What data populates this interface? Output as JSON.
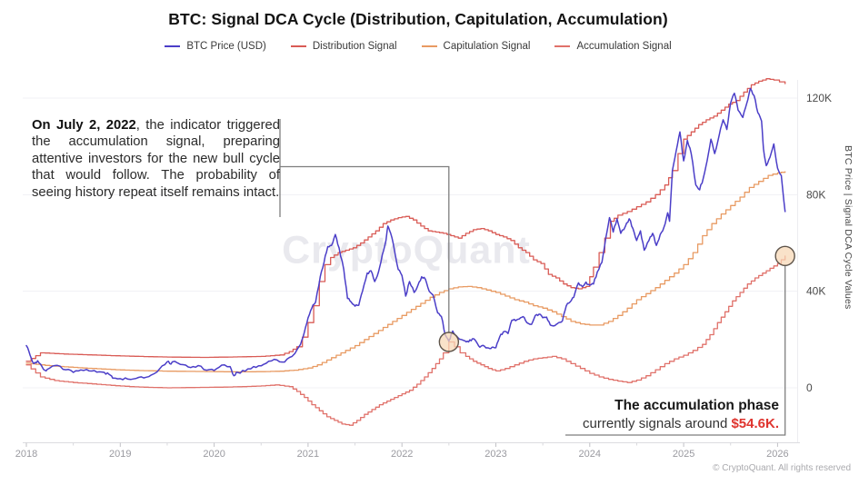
{
  "title": "BTC: Signal DCA Cycle (Distribution, Capitulation, Accumulation)",
  "watermark": "CryptoQuant",
  "footer": "© CryptoQuant. All rights reserved",
  "colors": {
    "btc": "#4b3ec8",
    "distribution": "#d95b55",
    "capitulation": "#e89a62",
    "accumulation": "#e0716a",
    "connector": "#7e7e7e",
    "marker_fill": "#f6d7b4",
    "marker_stroke": "#5d5349",
    "value_accent": "#df342e"
  },
  "legend": [
    {
      "id": "btc-price",
      "label": "BTC Price (USD)",
      "color": "#4b3ec8"
    },
    {
      "id": "distribution-signal",
      "label": "Distribution Signal",
      "color": "#d95b55"
    },
    {
      "id": "capitulation-signal",
      "label": "Capitulation Signal",
      "color": "#e89a62"
    },
    {
      "id": "accumulation-signal",
      "label": "Accumulation Signal",
      "color": "#e0716a"
    }
  ],
  "axes": {
    "y_title": "BTC Price | Signal DCA Cycle Values",
    "y_ticks": [
      {
        "label": "120K",
        "value": 120
      },
      {
        "label": "80K",
        "value": 80
      },
      {
        "label": "40K",
        "value": 40
      },
      {
        "label": "0",
        "value": 0
      }
    ],
    "x_ticks": [
      {
        "label": "2018",
        "year": 2018
      },
      {
        "label": "2019",
        "year": 2019
      },
      {
        "label": "2020",
        "year": 2020
      },
      {
        "label": "2021",
        "year": 2021
      },
      {
        "label": "2022",
        "year": 2022
      },
      {
        "label": "2023",
        "year": 2023
      },
      {
        "label": "2024",
        "year": 2024
      },
      {
        "label": "2025",
        "year": 2025
      },
      {
        "label": "2026",
        "year": 2026
      }
    ]
  },
  "annotations": {
    "accumulation_2022": {
      "bold": "On July 2, 2022",
      "rest": ", the indicator triggered the accumulation signal, preparing attentive investors for the new bull cycle that would follow. The probability of seeing history repeat itself remains intact."
    },
    "current_signal": {
      "line1": "The accumulation phase",
      "line2_prefix": "currently signals around ",
      "value": "$54.6K."
    }
  },
  "chart_data": {
    "type": "line",
    "x_unit": "year",
    "y_unit": "USD thousands",
    "x_range": [
      2018,
      2026.1
    ],
    "y_range": [
      -16,
      130
    ],
    "grid": "horizontal",
    "legend_position": "top",
    "series": [
      {
        "id": "btc-price",
        "name": "BTC Price (USD)",
        "color": "#4b3ec8",
        "style": "jagged",
        "x": [
          2018.0,
          2018.04,
          2018.08,
          2018.12,
          2018.17,
          2018.21,
          2018.25,
          2018.33,
          2018.42,
          2018.5,
          2018.58,
          2018.67,
          2018.75,
          2018.83,
          2018.88,
          2018.92,
          2019.0,
          2019.08,
          2019.17,
          2019.25,
          2019.33,
          2019.42,
          2019.5,
          2019.54,
          2019.58,
          2019.67,
          2019.75,
          2019.83,
          2019.92,
          2020.0,
          2020.08,
          2020.17,
          2020.21,
          2020.25,
          2020.33,
          2020.42,
          2020.5,
          2020.58,
          2020.67,
          2020.75,
          2020.83,
          2020.92,
          2020.96,
          2021.0,
          2021.04,
          2021.08,
          2021.13,
          2021.17,
          2021.21,
          2021.25,
          2021.29,
          2021.33,
          2021.38,
          2021.42,
          2021.46,
          2021.5,
          2021.54,
          2021.58,
          2021.63,
          2021.67,
          2021.71,
          2021.75,
          2021.79,
          2021.83,
          2021.85,
          2021.88,
          2021.92,
          2021.96,
          2022.0,
          2022.04,
          2022.08,
          2022.13,
          2022.17,
          2022.21,
          2022.25,
          2022.29,
          2022.33,
          2022.38,
          2022.42,
          2022.46,
          2022.5,
          2022.52,
          2022.54,
          2022.58,
          2022.63,
          2022.67,
          2022.71,
          2022.75,
          2022.79,
          2022.83,
          2022.88,
          2022.92,
          2022.96,
          2023.0,
          2023.04,
          2023.08,
          2023.13,
          2023.17,
          2023.21,
          2023.25,
          2023.29,
          2023.33,
          2023.38,
          2023.42,
          2023.46,
          2023.5,
          2023.54,
          2023.58,
          2023.63,
          2023.67,
          2023.71,
          2023.75,
          2023.79,
          2023.83,
          2023.88,
          2023.92,
          2023.96,
          2024.0,
          2024.04,
          2024.08,
          2024.13,
          2024.17,
          2024.21,
          2024.25,
          2024.29,
          2024.33,
          2024.38,
          2024.42,
          2024.46,
          2024.5,
          2024.54,
          2024.58,
          2024.63,
          2024.67,
          2024.71,
          2024.75,
          2024.79,
          2024.83,
          2024.85,
          2024.88,
          2024.92,
          2024.96,
          2025.0,
          2025.04,
          2025.08,
          2025.13,
          2025.17,
          2025.21,
          2025.25,
          2025.29,
          2025.33,
          2025.38,
          2025.42,
          2025.46,
          2025.5,
          2025.54,
          2025.58,
          2025.63,
          2025.67,
          2025.71,
          2025.75,
          2025.79,
          2025.83,
          2025.85,
          2025.88,
          2025.92,
          2025.96,
          2026.0,
          2026.04,
          2026.08
        ],
        "y": [
          17.5,
          13.5,
          10.0,
          11.2,
          8.5,
          7.0,
          8.2,
          9.3,
          7.5,
          6.4,
          7.4,
          7.0,
          6.5,
          6.4,
          5.6,
          4.0,
          3.8,
          3.6,
          3.9,
          4.1,
          5.3,
          7.9,
          10.8,
          9.8,
          11.0,
          9.6,
          8.4,
          9.2,
          7.3,
          7.2,
          9.4,
          8.8,
          5.0,
          6.4,
          6.9,
          8.8,
          9.1,
          11.0,
          11.5,
          10.7,
          13.0,
          18.0,
          23.0,
          29.0,
          33.0,
          35.5,
          46.0,
          52.0,
          58.5,
          59.0,
          63.5,
          58.0,
          49.0,
          37.0,
          35.5,
          33.8,
          34.2,
          40.0,
          47.5,
          48.5,
          44.0,
          48.0,
          55.0,
          61.0,
          67.0,
          64.0,
          57.0,
          49.0,
          46.5,
          38.0,
          44.0,
          39.5,
          42.5,
          46.0,
          45.0,
          40.0,
          38.5,
          31.0,
          29.5,
          22.0,
          19.3,
          21.5,
          23.5,
          21.5,
          20.0,
          19.5,
          19.0,
          20.3,
          19.2,
          16.8,
          17.2,
          16.5,
          16.8,
          16.6,
          21.0,
          23.2,
          22.5,
          28.0,
          27.8,
          28.5,
          29.5,
          27.0,
          26.3,
          30.0,
          30.5,
          29.0,
          29.3,
          26.0,
          25.8,
          27.0,
          27.8,
          34.0,
          35.5,
          37.5,
          43.5,
          42.0,
          43.8,
          42.5,
          43.0,
          48.0,
          52.0,
          62.0,
          70.5,
          64.5,
          70.0,
          64.0,
          67.0,
          70.0,
          66.0,
          61.0,
          65.0,
          57.0,
          61.0,
          64.0,
          59.0,
          63.5,
          66.5,
          72.5,
          69.0,
          90.0,
          98.0,
          106.0,
          94.0,
          102.5,
          97.0,
          84.0,
          82.0,
          87.0,
          94.0,
          103.0,
          97.0,
          105.0,
          111.0,
          107.0,
          118.0,
          122.0,
          115.0,
          112.0,
          117.5,
          124.0,
          121.0,
          114.0,
          110.5,
          99.0,
          92.0,
          95.5,
          101.0,
          91.0,
          88.0,
          73.0
        ]
      },
      {
        "id": "distribution-signal",
        "name": "Distribution Signal",
        "color": "#d95b55",
        "style": "step",
        "x": [
          2018.0,
          2018.15,
          2018.4,
          2018.7,
          2019.0,
          2019.3,
          2019.6,
          2019.9,
          2020.2,
          2020.5,
          2020.7,
          2020.8,
          2020.88,
          2020.94,
          2021.0,
          2021.06,
          2021.12,
          2021.18,
          2021.24,
          2021.32,
          2021.4,
          2021.48,
          2021.56,
          2021.64,
          2021.72,
          2021.8,
          2021.88,
          2021.96,
          2022.04,
          2022.12,
          2022.2,
          2022.28,
          2022.36,
          2022.44,
          2022.52,
          2022.6,
          2022.68,
          2022.76,
          2022.84,
          2022.92,
          2023.0,
          2023.08,
          2023.16,
          2023.24,
          2023.32,
          2023.4,
          2023.48,
          2023.56,
          2023.64,
          2023.72,
          2023.8,
          2023.88,
          2023.96,
          2024.04,
          2024.1,
          2024.16,
          2024.22,
          2024.3,
          2024.4,
          2024.5,
          2024.6,
          2024.7,
          2024.8,
          2024.88,
          2024.94,
          2025.0,
          2025.08,
          2025.16,
          2025.24,
          2025.32,
          2025.4,
          2025.48,
          2025.56,
          2025.64,
          2025.72,
          2025.8,
          2025.88,
          2025.96,
          2026.08
        ],
        "y": [
          11.0,
          14.5,
          14.0,
          13.6,
          13.2,
          12.9,
          12.7,
          12.6,
          12.8,
          13.0,
          13.6,
          15.0,
          17.0,
          21.0,
          27.0,
          34.0,
          44.0,
          51.0,
          54.0,
          56.0,
          57.0,
          58.0,
          60.0,
          62.5,
          65.0,
          68.0,
          69.5,
          70.5,
          71.0,
          69.5,
          67.0,
          65.0,
          64.5,
          64.0,
          63.0,
          62.0,
          64.0,
          65.5,
          66.0,
          65.0,
          63.5,
          62.5,
          61.0,
          58.0,
          56.0,
          53.0,
          51.5,
          47.0,
          45.5,
          43.0,
          41.5,
          41.0,
          42.0,
          50.0,
          56.0,
          62.0,
          69.0,
          71.5,
          73.0,
          75.0,
          77.0,
          80.0,
          84.0,
          90.0,
          97.0,
          103.0,
          106.0,
          109.0,
          111.0,
          112.5,
          115.0,
          117.5,
          119.0,
          122.5,
          125.5,
          127.0,
          128.0,
          127.5,
          126.0
        ]
      },
      {
        "id": "capitulation-signal",
        "name": "Capitulation Signal",
        "color": "#e89a62",
        "style": "step",
        "x": [
          2018.0,
          2018.2,
          2018.4,
          2018.6,
          2018.8,
          2019.0,
          2019.25,
          2019.5,
          2019.75,
          2020.0,
          2020.25,
          2020.5,
          2020.7,
          2020.85,
          2021.0,
          2021.1,
          2021.2,
          2021.3,
          2021.4,
          2021.5,
          2021.6,
          2021.7,
          2021.8,
          2021.9,
          2022.0,
          2022.1,
          2022.2,
          2022.3,
          2022.4,
          2022.5,
          2022.6,
          2022.7,
          2022.8,
          2022.9,
          2023.0,
          2023.1,
          2023.2,
          2023.3,
          2023.4,
          2023.5,
          2023.6,
          2023.7,
          2023.8,
          2023.9,
          2024.0,
          2024.1,
          2024.2,
          2024.3,
          2024.4,
          2024.5,
          2024.6,
          2024.7,
          2024.8,
          2024.9,
          2025.0,
          2025.1,
          2025.2,
          2025.3,
          2025.4,
          2025.5,
          2025.6,
          2025.7,
          2025.8,
          2025.9,
          2026.0,
          2026.08
        ],
        "y": [
          10.2,
          9.3,
          8.7,
          8.2,
          7.8,
          7.4,
          7.1,
          6.9,
          6.8,
          6.7,
          6.6,
          6.7,
          6.9,
          7.3,
          8.2,
          9.5,
          11.5,
          13.5,
          15.5,
          17.5,
          20.0,
          22.5,
          25.0,
          27.5,
          30.0,
          32.5,
          35.0,
          37.5,
          39.5,
          41.0,
          41.8,
          42.0,
          41.5,
          40.5,
          39.5,
          38.0,
          36.5,
          35.5,
          34.0,
          33.0,
          31.5,
          29.5,
          27.5,
          26.5,
          26.0,
          26.0,
          27.5,
          30.0,
          33.0,
          36.5,
          39.0,
          41.5,
          44.5,
          47.5,
          51.0,
          56.0,
          63.0,
          68.0,
          72.0,
          75.5,
          79.0,
          83.0,
          85.5,
          88.0,
          89.0,
          89.5
        ]
      },
      {
        "id": "accumulation-signal",
        "name": "Accumulation Signal",
        "color": "#e0716a",
        "style": "step",
        "x": [
          2018.0,
          2018.15,
          2018.3,
          2018.5,
          2018.7,
          2018.9,
          2019.1,
          2019.3,
          2019.5,
          2019.7,
          2019.9,
          2020.1,
          2020.3,
          2020.5,
          2020.65,
          2020.8,
          2020.88,
          2020.96,
          2021.04,
          2021.12,
          2021.2,
          2021.28,
          2021.36,
          2021.44,
          2021.52,
          2021.6,
          2021.68,
          2021.76,
          2021.84,
          2021.92,
          2022.0,
          2022.08,
          2022.16,
          2022.24,
          2022.32,
          2022.4,
          2022.44,
          2022.5,
          2022.56,
          2022.62,
          2022.68,
          2022.76,
          2022.84,
          2022.92,
          2023.0,
          2023.1,
          2023.2,
          2023.3,
          2023.4,
          2023.5,
          2023.6,
          2023.7,
          2023.8,
          2023.9,
          2024.0,
          2024.1,
          2024.2,
          2024.3,
          2024.4,
          2024.5,
          2024.6,
          2024.7,
          2024.8,
          2024.9,
          2025.0,
          2025.1,
          2025.2,
          2025.28,
          2025.36,
          2025.44,
          2025.52,
          2025.6,
          2025.68,
          2025.76,
          2025.84,
          2025.92,
          2026.0,
          2026.08
        ],
        "y": [
          9.5,
          4.5,
          3.0,
          2.2,
          1.6,
          1.0,
          0.5,
          0.2,
          0.0,
          0.1,
          0.2,
          0.3,
          0.5,
          0.8,
          1.2,
          0.5,
          -1.5,
          -4.0,
          -7.0,
          -9.5,
          -12.0,
          -13.5,
          -15.0,
          -15.5,
          -13.5,
          -11.0,
          -9.0,
          -7.0,
          -5.5,
          -4.0,
          -2.5,
          -1.0,
          1.5,
          4.5,
          8.0,
          12.0,
          14.5,
          19.0,
          17.0,
          14.5,
          13.0,
          11.0,
          9.5,
          8.0,
          7.0,
          8.0,
          9.5,
          11.0,
          12.0,
          12.5,
          13.0,
          12.0,
          10.0,
          8.0,
          6.0,
          4.5,
          3.5,
          2.8,
          2.2,
          3.2,
          5.0,
          7.5,
          10.0,
          12.0,
          13.5,
          15.5,
          18.0,
          22.0,
          27.0,
          31.5,
          36.0,
          39.5,
          43.0,
          45.5,
          47.5,
          49.5,
          51.5,
          54.6
        ]
      }
    ],
    "markers": [
      {
        "id": "accumulation-trigger-2022",
        "x": 2022.5,
        "y": 19.0,
        "note": "July 2, 2022 accumulation signal trigger"
      },
      {
        "id": "current-accumulation-level",
        "x": 2026.08,
        "y": 54.6,
        "note": "current accumulation signal ≈ $54.6K"
      }
    ]
  }
}
